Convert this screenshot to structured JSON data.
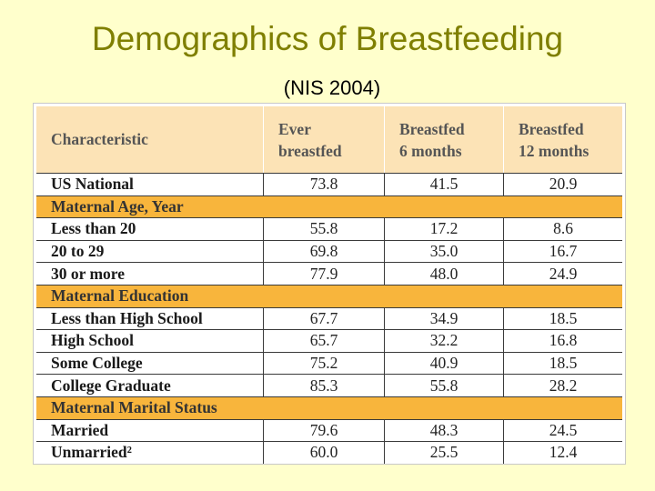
{
  "title": "Demographics of Breastfeeding",
  "subtitle": "(NIS 2004)",
  "table": {
    "headers": [
      "Characteristic",
      "Ever\nbreastfed",
      "Breastfed\n6 months",
      "Breastfed\n12 months"
    ],
    "rows": [
      {
        "type": "data",
        "cells": [
          "US National",
          "73.8",
          "41.5",
          "20.9"
        ]
      },
      {
        "type": "section",
        "cells": [
          "Maternal Age, Year"
        ]
      },
      {
        "type": "data",
        "cells": [
          "Less than 20",
          "55.8",
          "17.2",
          "8.6"
        ]
      },
      {
        "type": "data",
        "cells": [
          "20 to 29",
          "69.8",
          "35.0",
          "16.7"
        ]
      },
      {
        "type": "data",
        "cells": [
          "30 or more",
          "77.9",
          "48.0",
          "24.9"
        ]
      },
      {
        "type": "section",
        "cells": [
          "Maternal Education"
        ]
      },
      {
        "type": "data",
        "cells": [
          "Less than High School",
          "67.7",
          "34.9",
          "18.5"
        ]
      },
      {
        "type": "data",
        "cells": [
          "High School",
          "65.7",
          "32.2",
          "16.8"
        ]
      },
      {
        "type": "data",
        "cells": [
          "Some College",
          "75.2",
          "40.9",
          "18.5"
        ]
      },
      {
        "type": "data",
        "cells": [
          "College Graduate",
          "85.3",
          "55.8",
          "28.2"
        ]
      },
      {
        "type": "section",
        "cells": [
          "Maternal Marital Status"
        ]
      },
      {
        "type": "data",
        "cells": [
          "Married",
          "79.6",
          "48.3",
          "24.5"
        ]
      },
      {
        "type": "data",
        "cells": [
          "Unmarried²",
          "60.0",
          "25.5",
          "12.4"
        ]
      }
    ]
  }
}
